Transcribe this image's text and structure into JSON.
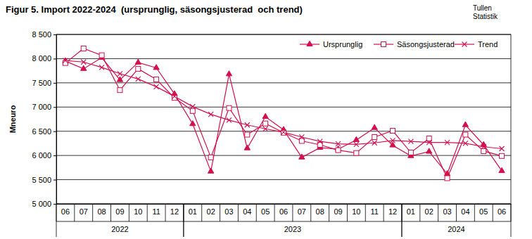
{
  "chart_data": {
    "type": "line",
    "title": "Figur 5. Import 2022-2024  (ursprunglig, säsongsjusterad  och trend)",
    "annotations": [
      "Tullen",
      "Statistik"
    ],
    "y_label": "Mneuro",
    "categories": [
      "06",
      "07",
      "08",
      "09",
      "10",
      "11",
      "12",
      "01",
      "02",
      "03",
      "04",
      "05",
      "06",
      "07",
      "08",
      "09",
      "10",
      "11",
      "12",
      "01",
      "02",
      "03",
      "04",
      "05",
      "06"
    ],
    "x_groups": [
      {
        "label": "2022",
        "size": 7
      },
      {
        "label": "2023",
        "size": 12
      },
      {
        "label": "2024",
        "size": 6
      }
    ],
    "ylim": [
      5000,
      8500
    ],
    "yticks": [
      {
        "value": 5000,
        "label": "5 000"
      },
      {
        "value": 5500,
        "label": "5 500"
      },
      {
        "value": 6000,
        "label": "6 000"
      },
      {
        "value": 6500,
        "label": "6 500"
      },
      {
        "value": 7000,
        "label": "7 000"
      },
      {
        "value": 7500,
        "label": "7 500"
      },
      {
        "value": 8000,
        "label": "8 000"
      },
      {
        "value": 8500,
        "label": "8 500"
      }
    ],
    "grid": true,
    "legend": "top-right",
    "series": [
      {
        "name": "Ursprunglig",
        "color": "#d40f4b",
        "marker": "triangle-filled",
        "line_style": "solid",
        "values": [
          7950,
          7790,
          8020,
          7560,
          7920,
          7810,
          7270,
          6650,
          5670,
          7680,
          6150,
          6800,
          6530,
          5960,
          6160,
          6130,
          6320,
          6570,
          6210,
          5990,
          6080,
          5620,
          6630,
          6220,
          5680
        ]
      },
      {
        "name": "Säsongsjusterad",
        "color": "#d40f4b",
        "marker": "square-open",
        "line_style": "solid",
        "values": [
          7910,
          8210,
          8070,
          7350,
          7790,
          7570,
          7190,
          6920,
          5960,
          6980,
          6430,
          6660,
          6470,
          6300,
          6220,
          6110,
          6050,
          6380,
          6510,
          6060,
          6350,
          5530,
          6430,
          6090,
          5990
        ]
      },
      {
        "name": "Trend",
        "color": "#d40f4b",
        "marker": "x",
        "line_style": "solid",
        "values": [
          7960,
          7930,
          7820,
          7690,
          7580,
          7420,
          7220,
          7010,
          6850,
          6730,
          6630,
          6550,
          6480,
          6380,
          6290,
          6240,
          6230,
          6260,
          6310,
          6290,
          6270,
          6270,
          6250,
          6180,
          6140
        ]
      }
    ]
  }
}
